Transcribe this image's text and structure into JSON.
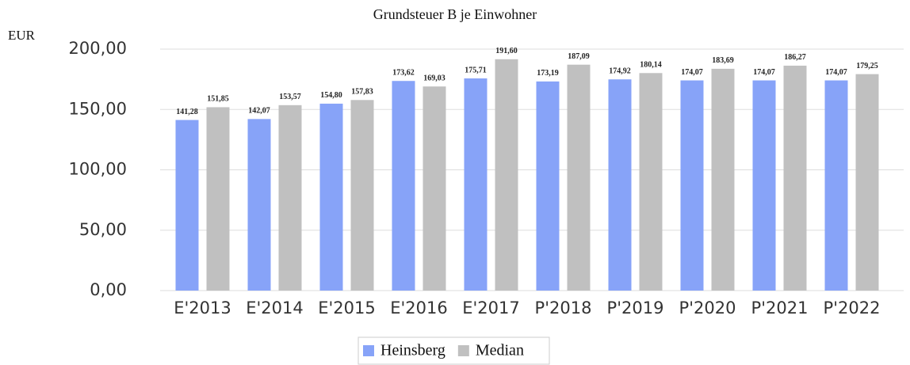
{
  "chart_data": {
    "type": "bar",
    "title": "Grundsteuer B je Einwohner",
    "y_label": "EUR",
    "categories": [
      "E'2013",
      "E'2014",
      "E'2015",
      "E'2016",
      "E'2017",
      "P'2018",
      "P'2019",
      "P'2020",
      "P'2021",
      "P'2022"
    ],
    "series": [
      {
        "name": "Heinsberg",
        "color": "#87a3f8",
        "values": [
          141.28,
          142.07,
          154.8,
          173.62,
          175.71,
          173.19,
          174.92,
          174.07,
          174.07,
          174.07
        ],
        "value_labels": [
          "141,28",
          "142,07",
          "154,80",
          "173,62",
          "175,71",
          "173,19",
          "174,92",
          "174,07",
          "174,07",
          "174,07"
        ]
      },
      {
        "name": "Median",
        "color": "#c0c0c0",
        "values": [
          151.85,
          153.57,
          157.83,
          169.03,
          191.6,
          187.09,
          180.14,
          183.69,
          186.27,
          179.25
        ],
        "value_labels": [
          "151,85",
          "153,57",
          "157,83",
          "169,03",
          "191,60",
          "187,09",
          "180,14",
          "183,69",
          "186,27",
          "179,25"
        ]
      }
    ],
    "ylim": [
      0,
      200
    ],
    "yticks": [
      {
        "value": 0,
        "label": "0,00"
      },
      {
        "value": 50,
        "label": "50,00"
      },
      {
        "value": 100,
        "label": "100,00"
      },
      {
        "value": 150,
        "label": "150,00"
      },
      {
        "value": 200,
        "label": "200,00"
      }
    ],
    "grid": true,
    "legend": "bottom"
  }
}
